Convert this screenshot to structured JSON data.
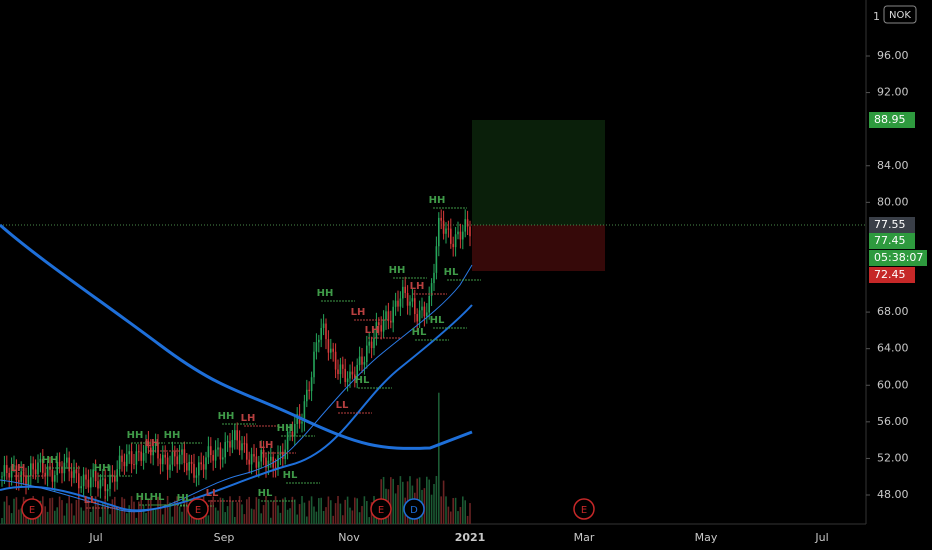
{
  "header": {
    "symbol": "NOK",
    "scale_top": "1"
  },
  "price_axis": [
    "96.00",
    "92.00",
    "84.00",
    "80.00",
    "68.00",
    "64.00",
    "60.00",
    "56.00",
    "52.00",
    "48.00"
  ],
  "time_axis": [
    "Jul",
    "Sep",
    "Nov",
    "2021",
    "Mar",
    "May",
    "Jul"
  ],
  "price_tags": {
    "target": "88.95",
    "last": "77.55",
    "bid": "77.45",
    "countdown": "05:38:07",
    "stop": "72.45"
  },
  "events": [
    "E",
    "E",
    "E",
    "D",
    "E"
  ],
  "pattern_labels": [
    "LH",
    "HH",
    "HH",
    "HH",
    "LH",
    "HH",
    "HH",
    "LH",
    "LH",
    "HH",
    "HL",
    "HL",
    "HL",
    "HL",
    "LL",
    "HH",
    "LH",
    "LH",
    "HL",
    "LL",
    "HH",
    "LH",
    "HL",
    "HL",
    "HH",
    "HL",
    "LL",
    "HL"
  ]
}
